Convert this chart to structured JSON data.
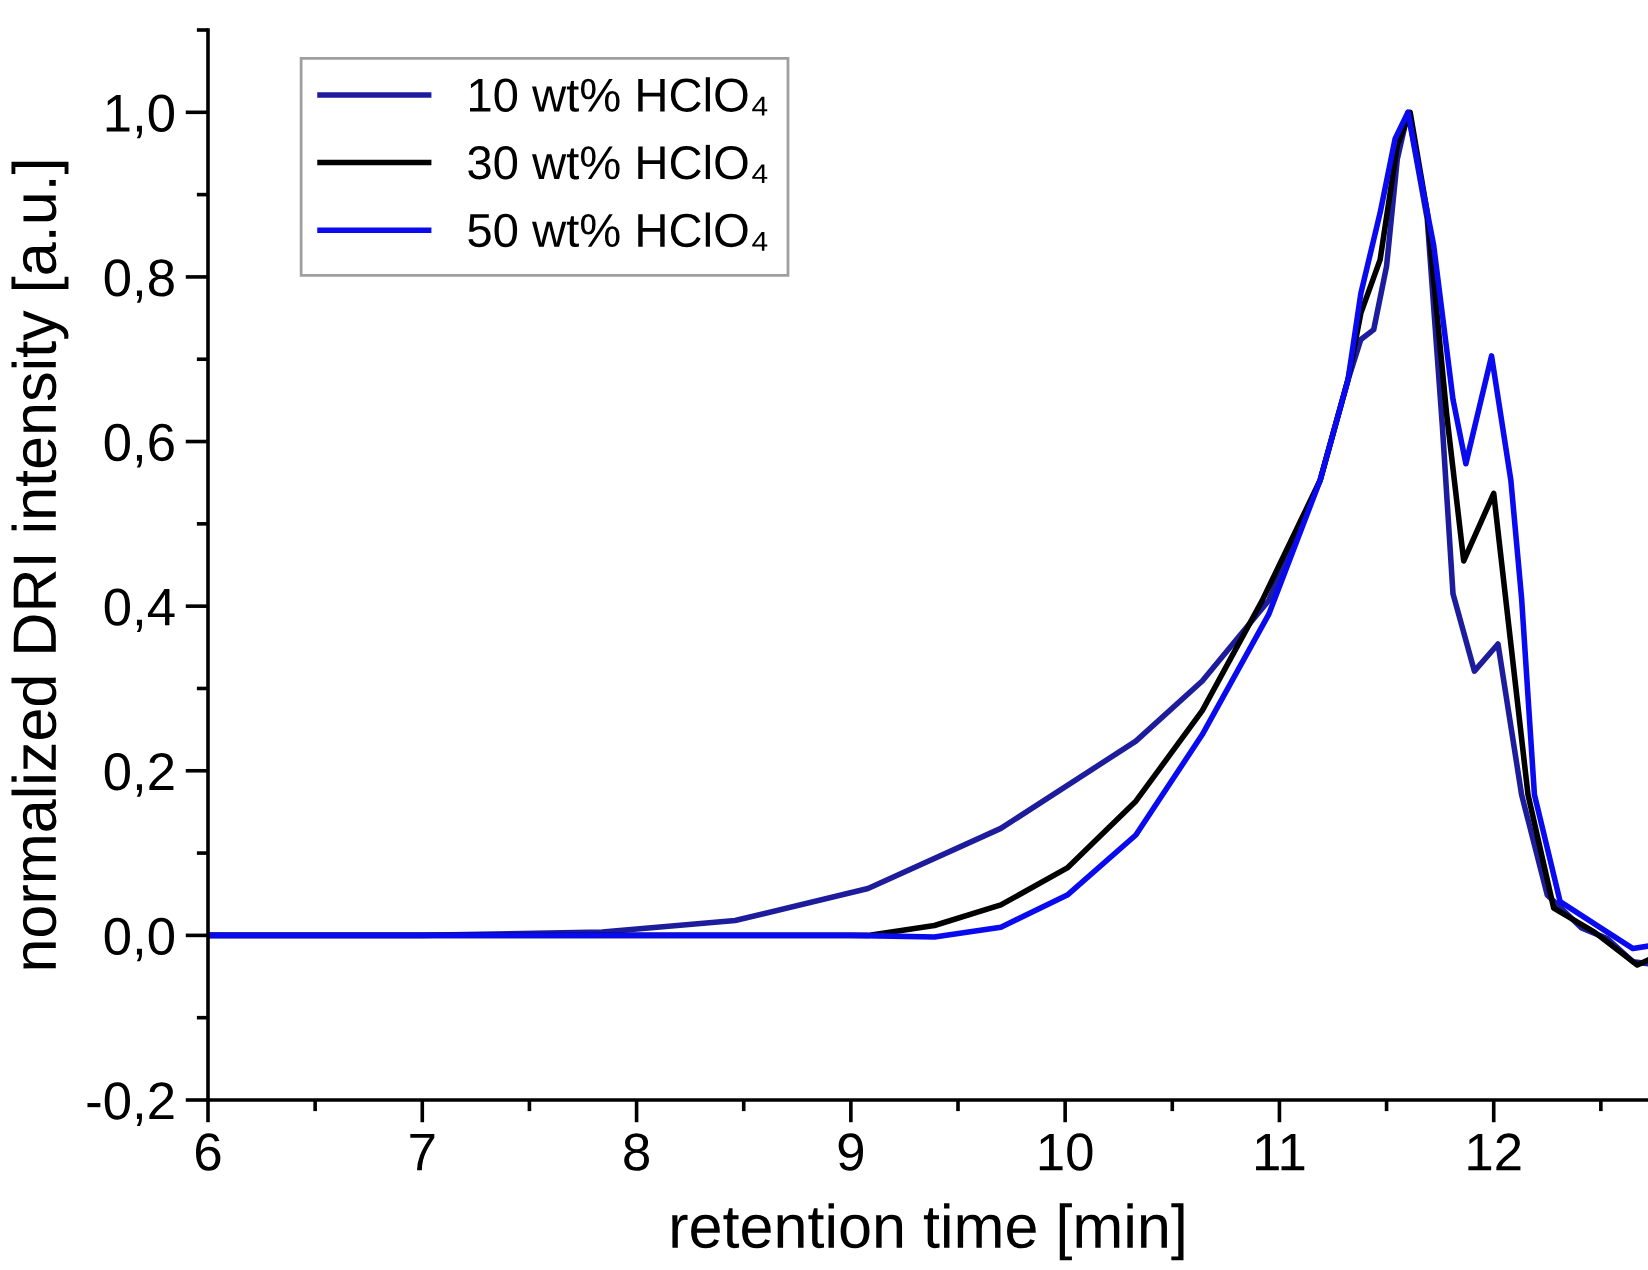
{
  "chart_data": {
    "type": "line",
    "xlabel": "retention time [min]",
    "ylabel": "normalized DRI intensity [a.u.]",
    "xlim": [
      6,
      12.72
    ],
    "ylim": [
      -0.2,
      1.1
    ],
    "xticks": [
      6,
      {
        "value": 6.5,
        "label": null
      },
      7,
      {
        "value": 7.5,
        "label": null
      },
      8,
      {
        "value": 8.5,
        "label": null
      },
      9,
      {
        "value": 9.5,
        "label": null
      },
      10,
      {
        "value": 10.5,
        "label": null
      },
      11,
      {
        "value": 11.5,
        "label": null
      },
      12,
      {
        "value": 12.5,
        "label": null
      }
    ],
    "yticks": [
      {
        "value": -0.2,
        "label": "-0,2"
      },
      {
        "value": -0.1,
        "label": null
      },
      {
        "value": 0,
        "label": "0,0"
      },
      {
        "value": 0.1,
        "label": null
      },
      {
        "value": 0.2,
        "label": "0,2"
      },
      {
        "value": 0.3,
        "label": null
      },
      {
        "value": 0.4,
        "label": "0,4"
      },
      {
        "value": 0.5,
        "label": null
      },
      {
        "value": 0.6,
        "label": "0,6"
      },
      {
        "value": 0.7,
        "label": null
      },
      {
        "value": 0.8,
        "label": "0,8"
      },
      {
        "value": 0.9,
        "label": null
      },
      {
        "value": 1.0,
        "label": "1,0"
      },
      {
        "value": 1.1,
        "label": null
      }
    ],
    "grid": false,
    "legend": "top left",
    "marker": "none",
    "line_style": "solid",
    "series": [
      {
        "name": "10 wt% HClO₄",
        "color": "#1c1c9c",
        "x": [
          6,
          7,
          7.84,
          8.46,
          9.08,
          9.7,
          10.33,
          10.64,
          10.95,
          11.19,
          11.32,
          11.38,
          11.44,
          11.5,
          11.55,
          11.6,
          11.69,
          11.76,
          11.81,
          11.91,
          12.02,
          12.13,
          12.25,
          12.41,
          12.53,
          12.65,
          12.71
        ],
        "values": [
          0,
          0,
          0.004,
          0.018,
          0.057,
          0.13,
          0.236,
          0.309,
          0.407,
          0.553,
          0.675,
          0.724,
          0.736,
          0.813,
          0.943,
          1.0,
          0.87,
          0.62,
          0.415,
          0.321,
          0.354,
          0.171,
          0.049,
          0.009,
          -0.004,
          -0.032,
          -0.034
        ]
      },
      {
        "name": "30 wt% HClO₄",
        "color": "#000000",
        "x": [
          6,
          7,
          8,
          9.08,
          9.39,
          9.7,
          10.01,
          10.33,
          10.64,
          10.92,
          11.19,
          11.32,
          11.38,
          11.47,
          11.55,
          11.61,
          11.69,
          11.78,
          11.86,
          12.0,
          12.16,
          12.28,
          12.47,
          12.67,
          12.72
        ],
        "values": [
          0,
          0,
          0,
          0.0,
          0.012,
          0.037,
          0.082,
          0.163,
          0.273,
          0.407,
          0.553,
          0.675,
          0.756,
          0.821,
          0.96,
          1.0,
          0.878,
          0.634,
          0.455,
          0.537,
          0.171,
          0.033,
          0.004,
          -0.036,
          -0.03
        ]
      },
      {
        "name": "50 wt% HClO₄",
        "color": "#0a0af0",
        "x": [
          6,
          7,
          8,
          9.0,
          9.39,
          9.7,
          10.01,
          10.33,
          10.64,
          10.95,
          11.19,
          11.32,
          11.38,
          11.47,
          11.54,
          11.6,
          11.72,
          11.81,
          11.87,
          11.99,
          12.08,
          12.13,
          12.19,
          12.31,
          12.53,
          12.65,
          12.72
        ],
        "values": [
          0,
          0,
          0,
          0,
          -0.002,
          0.01,
          0.049,
          0.122,
          0.244,
          0.39,
          0.553,
          0.675,
          0.78,
          0.878,
          0.968,
          1.0,
          0.838,
          0.651,
          0.573,
          0.704,
          0.553,
          0.41,
          0.171,
          0.041,
          0.004,
          -0.016,
          -0.013
        ]
      }
    ]
  }
}
